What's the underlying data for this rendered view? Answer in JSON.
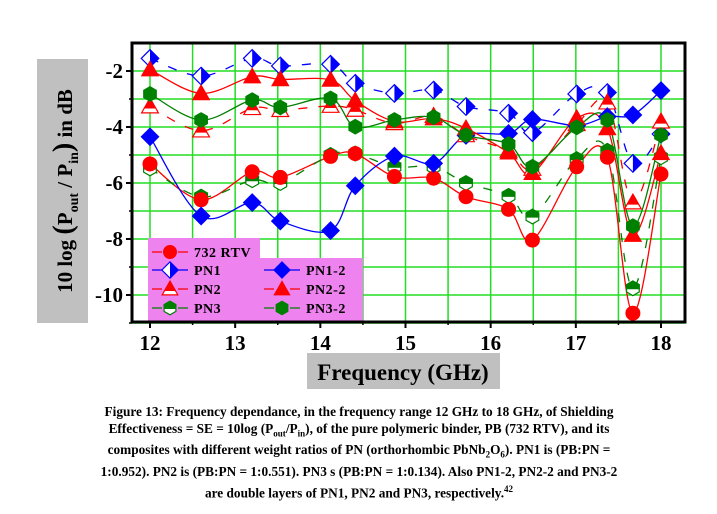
{
  "chart_data": {
    "type": "line",
    "title": "",
    "xlabel": "Frequency (GHz)",
    "ylabel": "10 log (P_out / P_in) in dB",
    "ylabel_parts": {
      "prefix": "10 log ",
      "p1": "P",
      "sub1": "out",
      "slash": " / ",
      "p2": "P",
      "sub2": "in",
      "suffix": " in dB"
    },
    "xlim": [
      12,
      18
    ],
    "ylim": [
      -11,
      -1
    ],
    "xticks": [
      12,
      13,
      14,
      15,
      16,
      17,
      18
    ],
    "yticks": [
      -2,
      -4,
      -6,
      -8,
      -10
    ],
    "xtick_labels": [
      "12",
      "13",
      "14",
      "15",
      "16",
      "17",
      "18"
    ],
    "ytick_labels": [
      "-2",
      "-4",
      "-6",
      "-8",
      "-10"
    ],
    "grid": true,
    "grid_color": "#22dd22",
    "legend_position": "bottom-left",
    "legend_background": "#ee82ee",
    "x": [
      12.0,
      12.6,
      13.2,
      13.53,
      14.12,
      14.41,
      14.87,
      15.33,
      15.71,
      16.21,
      16.49,
      17.01,
      17.37,
      17.67,
      18.0
    ],
    "series": [
      {
        "name": "732 RTV",
        "color": "#ff0000",
        "marker": "circle",
        "fill": "full",
        "dash": false,
        "values": [
          -5.32,
          -6.6,
          -5.6,
          -5.8,
          -5.05,
          -4.95,
          -5.77,
          -5.83,
          -6.49,
          -6.94,
          -8.04,
          -5.42,
          -5.08,
          -10.65,
          -5.68
        ]
      },
      {
        "name": "PN1",
        "color": "#0000ff",
        "marker": "diamond",
        "fill": "half-right",
        "dash": true,
        "values": [
          -1.55,
          -2.18,
          -1.55,
          -1.82,
          -1.76,
          -2.44,
          -2.8,
          -2.68,
          -3.27,
          -3.51,
          -4.2,
          -2.82,
          -2.77,
          -5.3,
          -4.25
        ]
      },
      {
        "name": "PN2",
        "color": "#ff0000",
        "marker": "triangle",
        "fill": "half-top",
        "dash": true,
        "values": [
          -3.27,
          -4.13,
          -3.33,
          -3.4,
          -3.25,
          -3.39,
          -3.87,
          -3.61,
          -4.3,
          -4.85,
          -5.5,
          -3.9,
          -3.13,
          -6.7,
          -3.81
        ]
      },
      {
        "name": "PN3",
        "color": "#008000",
        "marker": "hexagon",
        "fill": "half-top",
        "dash": true,
        "values": [
          -5.48,
          -6.49,
          -5.9,
          -6.0,
          -5.0,
          -4.95,
          -5.42,
          -5.42,
          -6.0,
          -6.46,
          -7.2,
          -5.15,
          -4.85,
          -9.76,
          -5.08
        ]
      },
      {
        "name": "PN1-2",
        "color": "#0000ff",
        "marker": "diamond",
        "fill": "full",
        "dash": false,
        "values": [
          -4.35,
          -7.18,
          -6.7,
          -7.36,
          -7.7,
          -6.1,
          -5.04,
          -5.3,
          -4.3,
          -4.23,
          -3.73,
          -3.95,
          -3.63,
          -3.57,
          -2.7
        ]
      },
      {
        "name": "PN2-2",
        "color": "#ff0000",
        "marker": "triangle",
        "fill": "full",
        "dash": false,
        "values": [
          -1.95,
          -2.8,
          -2.2,
          -2.3,
          -2.32,
          -3.06,
          -3.8,
          -3.7,
          -4.05,
          -4.92,
          -5.65,
          -3.69,
          -4.05,
          -7.86,
          -4.94
        ]
      },
      {
        "name": "PN3-2",
        "color": "#008000",
        "marker": "hexagon",
        "fill": "full",
        "dash": false,
        "values": [
          -2.82,
          -3.75,
          -3.04,
          -3.3,
          -2.98,
          -3.99,
          -3.75,
          -3.65,
          -4.29,
          -4.61,
          -5.42,
          -4.01,
          -3.75,
          -7.54,
          -4.29
        ]
      }
    ],
    "legend_columns": [
      [
        "732 RTV",
        "PN1",
        "PN2",
        "PN3"
      ],
      [
        "PN1-2",
        "PN2-2",
        "PN3-2"
      ]
    ]
  },
  "caption": {
    "line1": "Figure 13: Frequency dependance, in the frequency range 12 GHz to 18 GHz, of Shielding",
    "line2_pre": "Effectiveness = SE = 10log (P",
    "line2_sub1": "out",
    "line2_mid": "/P",
    "line2_sub2": "in",
    "line2_post": "), of the pure polymeric binder, PB (732 RTV), and its",
    "line3_pre": "composites with different weight ratios of PN (orthorhombic PbNb",
    "line3_sub1": "2",
    "line3_mid": "O",
    "line3_sub2": "6",
    "line3_post": ").  PN1 is (PB:PN =",
    "line4": "1:0.952). PN2 is (PB:PN = 1:0.551). PN3 s (PB:PN = 1:0.134). Also PN1-2, PN2-2 and PN3-2",
    "line5": "are double layers of PN1, PN2 and PN3, respectively.",
    "ref": "42"
  }
}
